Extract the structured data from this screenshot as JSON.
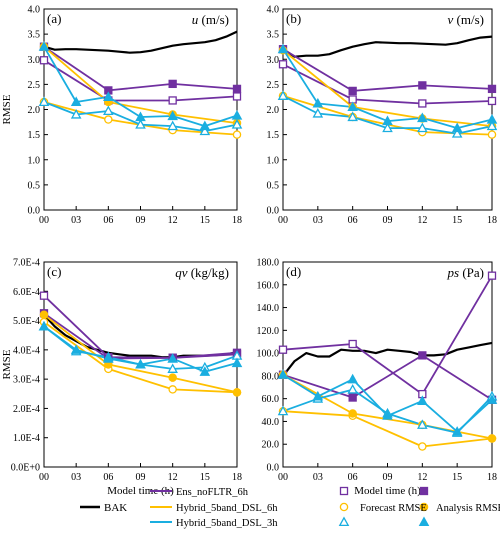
{
  "chart_data": [
    {
      "type": "line",
      "panel_label": "(a)",
      "title_var": "u",
      "title_unit": "(m/s)",
      "ylabel": "RMSE",
      "xlabel": "",
      "ylim": [
        0,
        4.0
      ],
      "yticks": [
        "0.0",
        "0.5",
        "1.0",
        "1.5",
        "2.0",
        "2.5",
        "3.0",
        "3.5",
        "4.0"
      ],
      "x_ticks": [
        "00",
        "03",
        "06",
        "09",
        "12",
        "15",
        "18"
      ],
      "series": [
        {
          "name": "BAK",
          "color": "#000000",
          "x": [
            0,
            1,
            2,
            3,
            4,
            5,
            6,
            7,
            8,
            9,
            10,
            11,
            12,
            13,
            14,
            15,
            16,
            17,
            18
          ],
          "values": [
            3.25,
            3.19,
            3.2,
            3.2,
            3.19,
            3.18,
            3.17,
            3.15,
            3.13,
            3.14,
            3.17,
            3.22,
            3.27,
            3.3,
            3.32,
            3.34,
            3.38,
            3.45,
            3.55
          ]
        },
        {
          "name": "Ens_noFLTR_6h forecast",
          "color": "#7030a0",
          "marker": "square-open",
          "x": [
            0,
            6,
            12,
            18
          ],
          "values": [
            2.98,
            2.18,
            2.18,
            2.26
          ]
        },
        {
          "name": "Ens_noFLTR_6h analysis",
          "color": "#7030a0",
          "marker": "square-filled",
          "x": [
            0,
            6,
            12,
            18
          ],
          "values": [
            3.25,
            2.38,
            2.51,
            2.41
          ]
        },
        {
          "name": "Hybrid_5band_DSL_6h forecast",
          "color": "#ffc000",
          "marker": "circle-open",
          "x": [
            0,
            6,
            12,
            18
          ],
          "values": [
            2.15,
            1.8,
            1.59,
            1.5
          ]
        },
        {
          "name": "Hybrid_5band_DSL_6h analysis",
          "color": "#ffc000",
          "marker": "circle-filled",
          "x": [
            0,
            6,
            12,
            18
          ],
          "values": [
            3.25,
            2.15,
            1.9,
            1.73
          ]
        },
        {
          "name": "Hybrid_5band_DSL_3h forecast",
          "color": "#1aaee0",
          "marker": "triangle-open",
          "x": [
            0,
            3,
            6,
            9,
            12,
            15,
            18
          ],
          "values": [
            2.15,
            1.9,
            1.97,
            1.7,
            1.67,
            1.57,
            1.7
          ]
        },
        {
          "name": "Hybrid_5band_DSL_3h analysis",
          "color": "#1aaee0",
          "marker": "triangle-filled",
          "x": [
            0,
            3,
            6,
            9,
            12,
            15,
            18
          ],
          "values": [
            3.25,
            2.15,
            2.25,
            1.85,
            1.87,
            1.67,
            1.88
          ]
        }
      ]
    },
    {
      "type": "line",
      "panel_label": "(b)",
      "title_var": "v",
      "title_unit": "(m/s)",
      "ylabel": "",
      "xlabel": "",
      "ylim": [
        0,
        4.0
      ],
      "yticks": [
        "0.0",
        "0.5",
        "1.0",
        "1.5",
        "2.0",
        "2.5",
        "3.0",
        "3.5",
        "4.0"
      ],
      "x_ticks": [
        "00",
        "03",
        "06",
        "09",
        "12",
        "15",
        "18"
      ],
      "series": [
        {
          "name": "BAK",
          "color": "#000000",
          "x": [
            0,
            1,
            2,
            3,
            4,
            5,
            6,
            7,
            8,
            9,
            10,
            11,
            12,
            13,
            14,
            15,
            16,
            17,
            18
          ],
          "values": [
            3.2,
            3.05,
            3.07,
            3.07,
            3.1,
            3.18,
            3.25,
            3.3,
            3.34,
            3.33,
            3.32,
            3.32,
            3.31,
            3.3,
            3.29,
            3.32,
            3.38,
            3.43,
            3.45
          ]
        },
        {
          "name": "Ens_noFLTR_6h forecast",
          "color": "#7030a0",
          "marker": "square-open",
          "x": [
            0,
            6,
            12,
            18
          ],
          "values": [
            2.9,
            2.2,
            2.12,
            2.17
          ]
        },
        {
          "name": "Ens_noFLTR_6h analysis",
          "color": "#7030a0",
          "marker": "square-filled",
          "x": [
            0,
            6,
            12,
            18
          ],
          "values": [
            3.2,
            2.37,
            2.48,
            2.41
          ]
        },
        {
          "name": "Hybrid_5band_DSL_6h forecast",
          "color": "#ffc000",
          "marker": "circle-open",
          "x": [
            0,
            6,
            12,
            18
          ],
          "values": [
            2.27,
            1.85,
            1.55,
            1.5
          ]
        },
        {
          "name": "Hybrid_5band_DSL_6h analysis",
          "color": "#ffc000",
          "marker": "circle-filled",
          "x": [
            0,
            6,
            12,
            18
          ],
          "values": [
            3.18,
            2.05,
            1.82,
            1.67
          ]
        },
        {
          "name": "Hybrid_5band_DSL_3h forecast",
          "color": "#1aaee0",
          "marker": "triangle-open",
          "x": [
            0,
            3,
            6,
            9,
            12,
            15,
            18
          ],
          "values": [
            2.27,
            1.92,
            1.85,
            1.63,
            1.63,
            1.52,
            1.67
          ]
        },
        {
          "name": "Hybrid_5band_DSL_3h analysis",
          "color": "#1aaee0",
          "marker": "triangle-filled",
          "x": [
            0,
            3,
            6,
            9,
            12,
            15,
            18
          ],
          "values": [
            3.2,
            2.12,
            2.05,
            1.77,
            1.83,
            1.63,
            1.8
          ]
        }
      ]
    },
    {
      "type": "line",
      "panel_label": "(c)",
      "title_var": "qv",
      "title_unit": "(kg/kg)",
      "ylabel": "RMSE",
      "xlabel": "Model time (h)",
      "ylim": [
        0,
        0.0007
      ],
      "yticks": [
        "0.0E+0",
        "1.0E-4",
        "2.0E-4",
        "3.0E-4",
        "4.0E-4",
        "5.0E-4",
        "6.0E-4",
        "7.0E-4"
      ],
      "x_ticks": [
        "00",
        "03",
        "06",
        "09",
        "12",
        "15",
        "18"
      ],
      "series": [
        {
          "name": "BAK",
          "color": "#000000",
          "x": [
            0,
            1,
            2,
            3,
            4,
            5,
            6,
            7,
            8,
            9,
            10,
            11,
            12,
            13,
            14,
            15,
            16,
            17,
            18
          ],
          "values": [
            0.00052,
            0.00048,
            0.00045,
            0.00043,
            0.00041,
            0.0004,
            0.00039,
            0.000385,
            0.00038,
            0.00038,
            0.00038,
            0.000375,
            0.000375,
            0.00038,
            0.00038,
            0.00038,
            0.000382,
            0.000385,
            0.000392
          ]
        },
        {
          "name": "Ens_noFLTR_6h forecast",
          "color": "#7030a0",
          "marker": "square-open",
          "x": [
            0,
            6,
            12,
            18
          ],
          "values": [
            0.000585,
            0.000375,
            0.000373,
            0.000385
          ]
        },
        {
          "name": "Ens_noFLTR_6h analysis",
          "color": "#7030a0",
          "marker": "square-filled",
          "x": [
            0,
            6,
            12,
            18
          ],
          "values": [
            0.000525,
            0.00037,
            0.000373,
            0.00039
          ]
        },
        {
          "name": "Hybrid_5band_DSL_6h forecast",
          "color": "#ffc000",
          "marker": "circle-open",
          "x": [
            0,
            6,
            12,
            18
          ],
          "values": [
            0.000495,
            0.000335,
            0.000265,
            0.000255
          ]
        },
        {
          "name": "Hybrid_5band_DSL_6h analysis",
          "color": "#ffc000",
          "marker": "circle-filled",
          "x": [
            0,
            6,
            12,
            18
          ],
          "values": [
            0.00052,
            0.00035,
            0.000305,
            0.000255
          ]
        },
        {
          "name": "Hybrid_5band_DSL_3h forecast",
          "color": "#1aaee0",
          "marker": "triangle-open",
          "x": [
            0,
            3,
            6,
            9,
            12,
            15,
            18
          ],
          "values": [
            0.00048,
            0.000395,
            0.000375,
            0.00035,
            0.000335,
            0.00034,
            0.00038
          ]
        },
        {
          "name": "Hybrid_5band_DSL_3h analysis",
          "color": "#1aaee0",
          "marker": "triangle-filled",
          "x": [
            0,
            3,
            6,
            9,
            12,
            15,
            18
          ],
          "values": [
            0.00048,
            0.0004,
            0.00037,
            0.00035,
            0.00037,
            0.000325,
            0.000355
          ]
        }
      ]
    },
    {
      "type": "line",
      "panel_label": "(d)",
      "title_var": "ps",
      "title_unit": "(Pa)",
      "ylabel": "",
      "xlabel": "Model time (h)",
      "ylim": [
        0,
        180
      ],
      "yticks": [
        "0.0",
        "20.0",
        "40.0",
        "60.0",
        "80.0",
        "100.0",
        "120.0",
        "140.0",
        "160.0",
        "180.0"
      ],
      "x_ticks": [
        "00",
        "03",
        "06",
        "09",
        "12",
        "15",
        "18"
      ],
      "series": [
        {
          "name": "BAK",
          "color": "#000000",
          "x": [
            0,
            1,
            2,
            3,
            4,
            5,
            6,
            7,
            8,
            9,
            10,
            11,
            12,
            13,
            14,
            15,
            16,
            17,
            18
          ],
          "values": [
            80,
            93,
            100,
            97,
            97,
            103,
            102,
            102,
            100,
            103,
            102,
            101,
            98,
            98,
            99,
            103,
            105,
            107,
            109
          ]
        },
        {
          "name": "Ens_noFLTR_6h forecast",
          "color": "#7030a0",
          "marker": "square-open",
          "x": [
            0,
            6,
            12,
            18
          ],
          "values": [
            103,
            108,
            64,
            168
          ]
        },
        {
          "name": "Ens_noFLTR_6h analysis",
          "color": "#7030a0",
          "marker": "square-filled",
          "x": [
            0,
            6,
            12,
            18
          ],
          "values": [
            81,
            61,
            98,
            59
          ]
        },
        {
          "name": "Hybrid_5band_DSL_6h forecast",
          "color": "#ffc000",
          "marker": "circle-open",
          "x": [
            0,
            6,
            12,
            18
          ],
          "values": [
            49,
            45,
            18,
            25
          ]
        },
        {
          "name": "Hybrid_5band_DSL_6h analysis",
          "color": "#ffc000",
          "marker": "circle-filled",
          "x": [
            0,
            6,
            12,
            18
          ],
          "values": [
            81,
            47,
            37,
            25
          ]
        },
        {
          "name": "Hybrid_5band_DSL_3h forecast",
          "color": "#1aaee0",
          "marker": "triangle-open",
          "x": [
            0,
            3,
            6,
            9,
            12,
            15,
            18
          ],
          "values": [
            49,
            60,
            68,
            47,
            37,
            30,
            62
          ]
        },
        {
          "name": "Hybrid_5band_DSL_3h analysis",
          "color": "#1aaee0",
          "marker": "triangle-filled",
          "x": [
            0,
            3,
            6,
            9,
            12,
            15,
            18
          ],
          "values": [
            81,
            62,
            77,
            45,
            58,
            31,
            59
          ]
        }
      ]
    }
  ],
  "legend": {
    "items": [
      {
        "label": "BAK",
        "color": "#000000",
        "marker": "none"
      },
      {
        "label": "Ens_noFLTR_6h",
        "color": "#7030a0",
        "marker": "none"
      },
      {
        "label": "Hybrid_5band_DSL_6h",
        "color": "#ffc000",
        "marker": "none"
      },
      {
        "label": "Hybrid_5band_DSL_3h",
        "color": "#1aaee0",
        "marker": "none"
      }
    ],
    "marker_key": [
      {
        "color": "#7030a0",
        "open": "square-open",
        "filled": "square-filled"
      },
      {
        "color": "#ffc000",
        "open": "circle-open",
        "filled": "circle-filled"
      },
      {
        "color": "#1aaee0",
        "open": "triangle-open",
        "filled": "triangle-filled"
      }
    ],
    "forecast_label": "Forecast RMSE",
    "analysis_label": "Analysis RMSE"
  }
}
